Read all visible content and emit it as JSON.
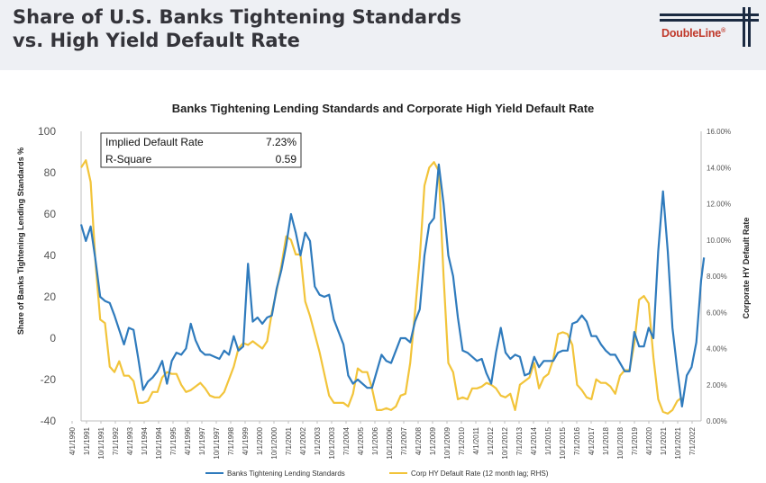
{
  "slide": {
    "title_line1": "Share of U.S. Banks Tightening Standards",
    "title_line2": "vs. High Yield Default Rate",
    "logo_text": "DoubleLine",
    "logo_reg": "®"
  },
  "colors": {
    "banks": "#2f7bbd",
    "default_rate": "#f2c43a",
    "axis": "#bfbfbf"
  },
  "chart_data": {
    "type": "line",
    "title": "Banks Tightening Lending Standards and Corporate High Yield Default Rate",
    "ylabel_left": "Share of Banks Tightening Lending Standards %",
    "ylabel_right": "Corporate HY Default Rate",
    "y_left_range": [
      -40,
      100
    ],
    "y_left_ticks": [
      "100",
      "80",
      "60",
      "40",
      "20",
      "0",
      "-20",
      "-40"
    ],
    "y_right_range": [
      0,
      16
    ],
    "y_right_ticks": [
      "16.00%",
      "14.00%",
      "12.00%",
      "10.00%",
      "8.00%",
      "6.00%",
      "4.00%",
      "2.00%",
      "0.00%"
    ],
    "x_range": [
      "1990-04-01",
      "2022-10-01"
    ],
    "x_tick_labels": [
      "4/1/1990",
      "1/1/1991",
      "10/1/1991",
      "7/1/1992",
      "4/1/1993",
      "1/1/1994",
      "10/1/1994",
      "7/1/1995",
      "4/1/1996",
      "1/1/1997",
      "10/1/1997",
      "7/1/1998",
      "4/1/1999",
      "1/1/2000",
      "10/1/2000",
      "7/1/2001",
      "4/1/2002",
      "1/1/2003",
      "10/1/2003",
      "7/1/2004",
      "4/1/2005",
      "1/1/2006",
      "10/1/2006",
      "7/1/2007",
      "4/1/2008",
      "1/1/2009",
      "10/1/2009",
      "7/1/2010",
      "4/1/2011",
      "1/1/2012",
      "10/1/2012",
      "7/1/2013",
      "4/1/2014",
      "1/1/2015",
      "10/1/2015",
      "7/1/2016",
      "4/1/2017",
      "1/1/2018",
      "10/1/2018",
      "7/1/2019",
      "4/1/2020",
      "1/1/2021",
      "10/1/2021",
      "7/1/2022"
    ],
    "stats_table": [
      {
        "label": "Implied Default Rate",
        "value": "7.23%"
      },
      {
        "label": "R-Square",
        "value": "0.59"
      }
    ],
    "grid": false,
    "legend_position": "bottom",
    "series": [
      {
        "name": "Banks Tightening Lending Standards",
        "axis": "left",
        "points": [
          [
            1990.25,
            55
          ],
          [
            1990.5,
            47
          ],
          [
            1990.75,
            54
          ],
          [
            1991.0,
            38
          ],
          [
            1991.25,
            20
          ],
          [
            1991.5,
            18
          ],
          [
            1991.75,
            17
          ],
          [
            1992.0,
            11
          ],
          [
            1992.25,
            4
          ],
          [
            1992.5,
            -3
          ],
          [
            1992.75,
            5
          ],
          [
            1993.0,
            4
          ],
          [
            1993.25,
            -10
          ],
          [
            1993.5,
            -25
          ],
          [
            1993.75,
            -21
          ],
          [
            1994.0,
            -19
          ],
          [
            1994.25,
            -16
          ],
          [
            1994.5,
            -11
          ],
          [
            1994.75,
            -22
          ],
          [
            1995.0,
            -11
          ],
          [
            1995.25,
            -7
          ],
          [
            1995.5,
            -8
          ],
          [
            1995.75,
            -5
          ],
          [
            1996.0,
            7
          ],
          [
            1996.25,
            -1
          ],
          [
            1996.5,
            -6
          ],
          [
            1996.75,
            -8
          ],
          [
            1997.0,
            -8
          ],
          [
            1997.25,
            -9
          ],
          [
            1997.5,
            -10
          ],
          [
            1997.75,
            -6
          ],
          [
            1998.0,
            -8
          ],
          [
            1998.25,
            1
          ],
          [
            1998.5,
            -6
          ],
          [
            1998.75,
            -4
          ],
          [
            1999.0,
            36
          ],
          [
            1999.25,
            8
          ],
          [
            1999.5,
            10
          ],
          [
            1999.75,
            7
          ],
          [
            2000.0,
            10
          ],
          [
            2000.25,
            11
          ],
          [
            2000.5,
            24
          ],
          [
            2000.75,
            33
          ],
          [
            2001.0,
            45
          ],
          [
            2001.25,
            60
          ],
          [
            2001.5,
            51
          ],
          [
            2001.75,
            40
          ],
          [
            2002.0,
            51
          ],
          [
            2002.25,
            47
          ],
          [
            2002.5,
            25
          ],
          [
            2002.75,
            21
          ],
          [
            2003.0,
            20
          ],
          [
            2003.25,
            21
          ],
          [
            2003.5,
            9
          ],
          [
            2003.75,
            3
          ],
          [
            2004.0,
            -3
          ],
          [
            2004.25,
            -18
          ],
          [
            2004.5,
            -22
          ],
          [
            2004.75,
            -20
          ],
          [
            2005.0,
            -22
          ],
          [
            2005.25,
            -24
          ],
          [
            2005.5,
            -24
          ],
          [
            2005.75,
            -16
          ],
          [
            2006.0,
            -8
          ],
          [
            2006.25,
            -11
          ],
          [
            2006.5,
            -12
          ],
          [
            2006.75,
            -6
          ],
          [
            2007.0,
            0
          ],
          [
            2007.25,
            0
          ],
          [
            2007.5,
            -2
          ],
          [
            2007.75,
            8
          ],
          [
            2008.0,
            14
          ],
          [
            2008.25,
            40
          ],
          [
            2008.5,
            55
          ],
          [
            2008.75,
            58
          ],
          [
            2009.0,
            84
          ],
          [
            2009.25,
            65
          ],
          [
            2009.5,
            40
          ],
          [
            2009.75,
            30
          ],
          [
            2010.0,
            10
          ],
          [
            2010.25,
            -6
          ],
          [
            2010.5,
            -7
          ],
          [
            2010.75,
            -9
          ],
          [
            2011.0,
            -11
          ],
          [
            2011.25,
            -10
          ],
          [
            2011.5,
            -17
          ],
          [
            2011.75,
            -22
          ],
          [
            2012.0,
            -7
          ],
          [
            2012.25,
            5
          ],
          [
            2012.5,
            -7
          ],
          [
            2012.75,
            -10
          ],
          [
            2013.0,
            -8
          ],
          [
            2013.25,
            -9
          ],
          [
            2013.5,
            -18
          ],
          [
            2013.75,
            -17
          ],
          [
            2014.0,
            -9
          ],
          [
            2014.25,
            -14
          ],
          [
            2014.5,
            -11
          ],
          [
            2014.75,
            -11
          ],
          [
            2015.0,
            -11
          ],
          [
            2015.25,
            -7
          ],
          [
            2015.5,
            -6
          ],
          [
            2015.75,
            -6
          ],
          [
            2016.0,
            7
          ],
          [
            2016.25,
            8
          ],
          [
            2016.5,
            11
          ],
          [
            2016.75,
            8
          ],
          [
            2017.0,
            1
          ],
          [
            2017.25,
            1
          ],
          [
            2017.5,
            -3
          ],
          [
            2017.75,
            -6
          ],
          [
            2018.0,
            -8
          ],
          [
            2018.25,
            -8
          ],
          [
            2018.5,
            -12
          ],
          [
            2018.75,
            -16
          ],
          [
            2019.0,
            -16
          ],
          [
            2019.25,
            3
          ],
          [
            2019.5,
            -4
          ],
          [
            2019.75,
            -4
          ],
          [
            2020.0,
            5
          ],
          [
            2020.25,
            0
          ],
          [
            2020.5,
            42
          ],
          [
            2020.75,
            71
          ],
          [
            2021.0,
            42
          ],
          [
            2021.25,
            5
          ],
          [
            2021.5,
            -15
          ],
          [
            2021.75,
            -33
          ],
          [
            2022.0,
            -18
          ],
          [
            2022.25,
            -14
          ],
          [
            2022.5,
            -2
          ],
          [
            2022.75,
            28
          ],
          [
            2022.9,
            39
          ]
        ]
      },
      {
        "name": "Corp HY Default Rate (12 month lag; RHS)",
        "axis": "right",
        "points": [
          [
            1990.25,
            14.0
          ],
          [
            1990.5,
            14.4
          ],
          [
            1990.75,
            13.2
          ],
          [
            1991.0,
            8.8
          ],
          [
            1991.25,
            5.6
          ],
          [
            1991.5,
            5.4
          ],
          [
            1991.75,
            3.0
          ],
          [
            1992.0,
            2.7
          ],
          [
            1992.25,
            3.3
          ],
          [
            1992.5,
            2.5
          ],
          [
            1992.75,
            2.5
          ],
          [
            1993.0,
            2.2
          ],
          [
            1993.25,
            1.0
          ],
          [
            1993.5,
            1.0
          ],
          [
            1993.75,
            1.1
          ],
          [
            1994.0,
            1.6
          ],
          [
            1994.25,
            1.6
          ],
          [
            1994.5,
            2.4
          ],
          [
            1994.75,
            2.7
          ],
          [
            1995.0,
            2.6
          ],
          [
            1995.25,
            2.6
          ],
          [
            1995.5,
            2.0
          ],
          [
            1995.75,
            1.6
          ],
          [
            1996.0,
            1.7
          ],
          [
            1996.25,
            1.9
          ],
          [
            1996.5,
            2.1
          ],
          [
            1996.75,
            1.8
          ],
          [
            1997.0,
            1.4
          ],
          [
            1997.25,
            1.3
          ],
          [
            1997.5,
            1.3
          ],
          [
            1997.75,
            1.6
          ],
          [
            1998.0,
            2.3
          ],
          [
            1998.25,
            3.0
          ],
          [
            1998.5,
            4.0
          ],
          [
            1998.75,
            4.3
          ],
          [
            1999.0,
            4.2
          ],
          [
            1999.25,
            4.4
          ],
          [
            1999.5,
            4.2
          ],
          [
            1999.75,
            4.0
          ],
          [
            2000.0,
            4.4
          ],
          [
            2000.25,
            6.0
          ],
          [
            2000.5,
            7.2
          ],
          [
            2000.75,
            8.6
          ],
          [
            2001.0,
            10.2
          ],
          [
            2001.25,
            10.0
          ],
          [
            2001.5,
            9.2
          ],
          [
            2001.75,
            9.2
          ],
          [
            2002.0,
            6.6
          ],
          [
            2002.25,
            5.8
          ],
          [
            2002.5,
            4.8
          ],
          [
            2002.75,
            3.8
          ],
          [
            2003.0,
            2.6
          ],
          [
            2003.25,
            1.4
          ],
          [
            2003.5,
            1.0
          ],
          [
            2003.75,
            1.0
          ],
          [
            2004.0,
            1.0
          ],
          [
            2004.25,
            0.8
          ],
          [
            2004.5,
            1.5
          ],
          [
            2004.75,
            2.9
          ],
          [
            2005.0,
            2.7
          ],
          [
            2005.25,
            2.7
          ],
          [
            2005.5,
            1.8
          ],
          [
            2005.75,
            0.6
          ],
          [
            2006.0,
            0.6
          ],
          [
            2006.25,
            0.7
          ],
          [
            2006.5,
            0.6
          ],
          [
            2006.75,
            0.8
          ],
          [
            2007.0,
            1.4
          ],
          [
            2007.25,
            1.5
          ],
          [
            2007.5,
            3.2
          ],
          [
            2007.75,
            6.0
          ],
          [
            2008.0,
            9.0
          ],
          [
            2008.25,
            13.0
          ],
          [
            2008.5,
            14.0
          ],
          [
            2008.75,
            14.3
          ],
          [
            2009.0,
            13.8
          ],
          [
            2009.25,
            8.0
          ],
          [
            2009.5,
            3.2
          ],
          [
            2009.75,
            2.7
          ],
          [
            2010.0,
            1.2
          ],
          [
            2010.25,
            1.3
          ],
          [
            2010.5,
            1.2
          ],
          [
            2010.75,
            1.8
          ],
          [
            2011.0,
            1.8
          ],
          [
            2011.25,
            1.9
          ],
          [
            2011.5,
            2.1
          ],
          [
            2011.75,
            2.0
          ],
          [
            2012.0,
            1.8
          ],
          [
            2012.25,
            1.4
          ],
          [
            2012.5,
            1.3
          ],
          [
            2012.75,
            1.5
          ],
          [
            2013.0,
            0.6
          ],
          [
            2013.25,
            2.0
          ],
          [
            2013.5,
            2.2
          ],
          [
            2013.75,
            2.4
          ],
          [
            2014.0,
            3.2
          ],
          [
            2014.25,
            1.8
          ],
          [
            2014.5,
            2.4
          ],
          [
            2014.75,
            2.6
          ],
          [
            2015.0,
            3.4
          ],
          [
            2015.25,
            4.8
          ],
          [
            2015.5,
            4.9
          ],
          [
            2015.75,
            4.8
          ],
          [
            2016.0,
            4.2
          ],
          [
            2016.25,
            2.0
          ],
          [
            2016.5,
            1.7
          ],
          [
            2016.75,
            1.3
          ],
          [
            2017.0,
            1.2
          ],
          [
            2017.25,
            2.3
          ],
          [
            2017.5,
            2.1
          ],
          [
            2017.75,
            2.1
          ],
          [
            2018.0,
            1.9
          ],
          [
            2018.25,
            1.5
          ],
          [
            2018.5,
            2.5
          ],
          [
            2018.75,
            2.8
          ],
          [
            2019.0,
            2.8
          ],
          [
            2019.25,
            4.3
          ],
          [
            2019.5,
            6.7
          ],
          [
            2019.75,
            6.9
          ],
          [
            2020.0,
            6.5
          ],
          [
            2020.25,
            3.5
          ],
          [
            2020.5,
            1.2
          ],
          [
            2020.75,
            0.5
          ],
          [
            2021.0,
            0.4
          ],
          [
            2021.25,
            0.6
          ],
          [
            2021.5,
            1.1
          ],
          [
            2021.75,
            1.3
          ]
        ]
      }
    ]
  }
}
